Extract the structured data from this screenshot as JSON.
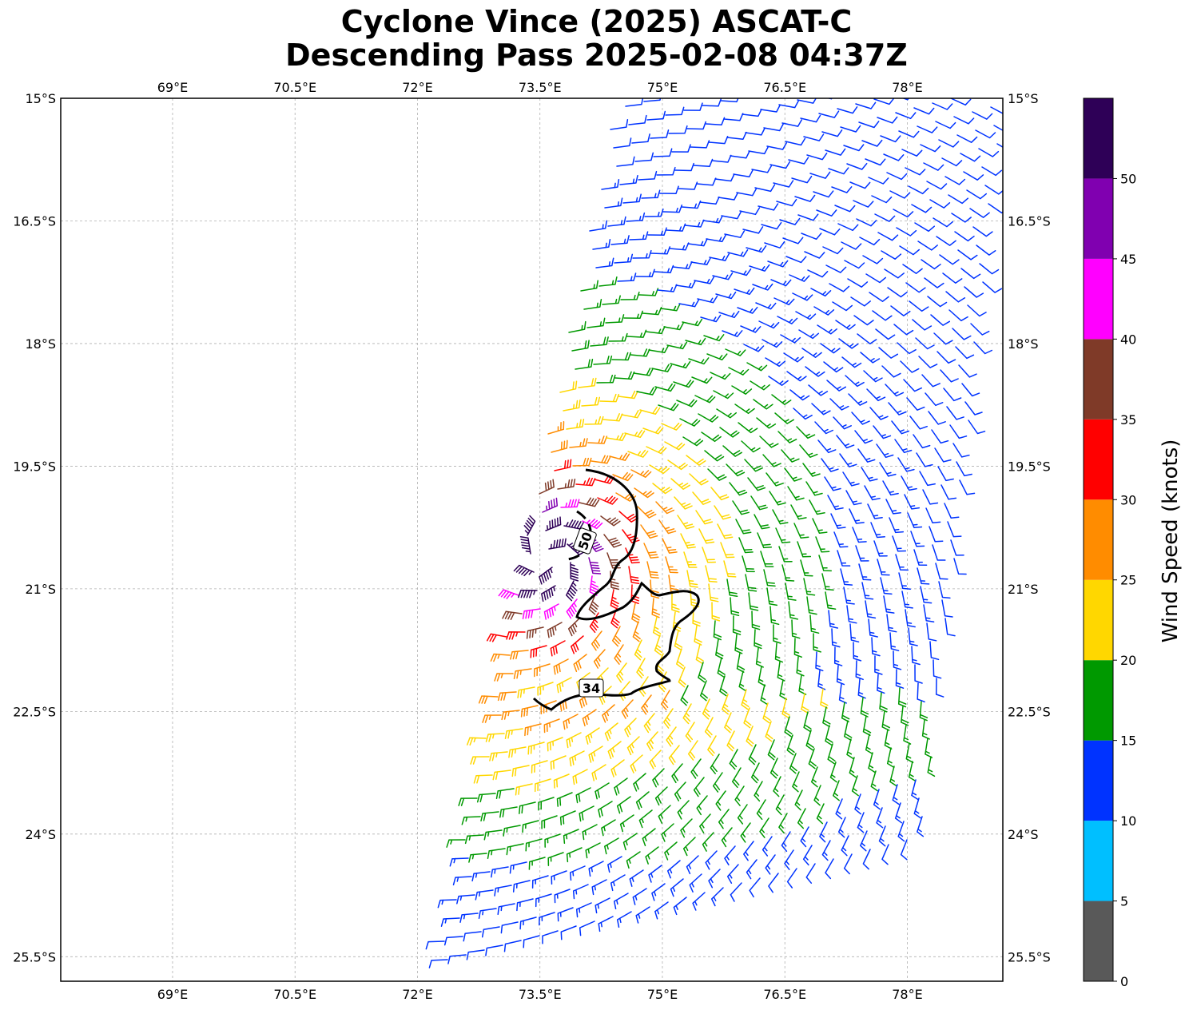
{
  "chart_data": {
    "type": "wind-barb",
    "title": "Cyclone Vince (2025) ASCAT-C",
    "subtitle": "Descending Pass 2025-02-08 04:37Z",
    "x_ticks": [
      "69°E",
      "70.5°E",
      "72°E",
      "73.5°E",
      "75°E",
      "76.5°E",
      "78°E"
    ],
    "x_tick_values": [
      69,
      70.5,
      72,
      73.5,
      75,
      76.5,
      78
    ],
    "y_ticks": [
      "15°S",
      "16.5°S",
      "18°S",
      "19.5°S",
      "21°S",
      "22.5°S",
      "24°S",
      "25.5°S"
    ],
    "y_tick_values": [
      -15,
      -16.5,
      -18,
      -19.5,
      -21,
      -22.5,
      -24,
      -25.5
    ],
    "xlim": [
      67.63,
      79.17
    ],
    "ylim": [
      -25.8,
      -15
    ],
    "grid": true,
    "storm_center": {
      "lon": 73.6,
      "lat": -20.6
    },
    "swath": {
      "top_left_lon": 74.4,
      "bottom_left_lon": 72.2,
      "top_right_lon": 79.2,
      "bottom_right_lon": 78.0
    },
    "contours": [
      {
        "level": 34,
        "label": "34"
      },
      {
        "level": 50,
        "label": "50"
      }
    ],
    "colorbar": {
      "label": "Wind Speed (knots)",
      "ticks": [
        "0",
        "5",
        "10",
        "15",
        "20",
        "25",
        "30",
        "35",
        "40",
        "45",
        "50"
      ],
      "bounds": [
        0,
        5,
        10,
        15,
        20,
        25,
        30,
        35,
        40,
        45,
        50,
        55
      ],
      "colors": [
        "#595959",
        "#00bfff",
        "#0033ff",
        "#009900",
        "#ffd700",
        "#ff8c00",
        "#ff0000",
        "#7f3a28",
        "#ff00ff",
        "#8000b0",
        "#2e0057"
      ]
    }
  }
}
